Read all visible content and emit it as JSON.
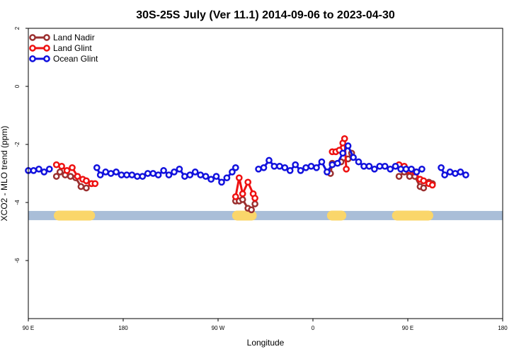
{
  "chart_data": {
    "type": "line",
    "title": "30S-25S July (Ver 11.1)   2014-09-06 to 2023-04-30",
    "xlabel": "Longitude",
    "ylabel": "XCO2 - MLO trend (ppm)",
    "xlim": [
      -90,
      180
    ],
    "ylim": [
      -8,
      2
    ],
    "x_ticks": [
      {
        "value": -90,
        "label": "90 E"
      },
      {
        "value": -36,
        "label": "180"
      },
      {
        "value": 18,
        "label": "90 W"
      },
      {
        "value": 72,
        "label": "0"
      },
      {
        "value": 126,
        "label": "90 E"
      },
      {
        "value": 180,
        "label": "180"
      }
    ],
    "y_ticks": [
      {
        "value": 2,
        "label": "2"
      },
      {
        "value": 0,
        "label": "0"
      },
      {
        "value": -2,
        "label": "-2"
      },
      {
        "value": -4,
        "label": "-4"
      },
      {
        "value": -6,
        "label": "-6"
      }
    ],
    "legend_position": "top-left",
    "grid": false,
    "band": {
      "y": -4.45,
      "color": "#a9bed8",
      "land_color": "#fad66a",
      "land_segments": [
        [
          -75.5,
          -52
        ],
        [
          26,
          40
        ],
        [
          80,
          91
        ],
        [
          117,
          140.5
        ]
      ]
    },
    "series": [
      {
        "name": "Land Nadir",
        "color": "#9b3030",
        "segments": [
          [
            [
              -74,
              -3.1
            ],
            [
              -72,
              -2.95
            ],
            [
              -69,
              -3.05
            ],
            [
              -66,
              -3.1
            ],
            [
              -63,
              -3.15
            ],
            [
              -60,
              -3.45
            ],
            [
              -57,
              -3.5
            ],
            [
              -54,
              -3.35
            ]
          ],
          [
            [
              28,
              -3.95
            ],
            [
              30,
              -3.95
            ],
            [
              32,
              -3.9
            ],
            [
              35,
              -4.2
            ],
            [
              37,
              -4.25
            ],
            [
              39,
              -4.05
            ]
          ],
          [
            [
              82,
              -3.0
            ],
            [
              83,
              -2.65
            ],
            [
              88,
              -2.6
            ],
            [
              92,
              -2.5
            ],
            [
              94,
              -2.3
            ]
          ],
          [
            [
              121,
              -3.1
            ],
            [
              124,
              -2.95
            ],
            [
              127,
              -3.1
            ],
            [
              130,
              -3.1
            ],
            [
              133,
              -3.45
            ],
            [
              135,
              -3.5
            ],
            [
              138,
              -3.3
            ],
            [
              140,
              -3.35
            ]
          ]
        ]
      },
      {
        "name": "Land Glint",
        "color": "#ee1111",
        "segments": [
          [
            [
              -74,
              -2.7
            ],
            [
              -71,
              -2.75
            ],
            [
              -68,
              -2.9
            ],
            [
              -65,
              -2.8
            ],
            [
              -62,
              -3.1
            ],
            [
              -59,
              -3.2
            ],
            [
              -57,
              -3.25
            ],
            [
              -54,
              -3.35
            ],
            [
              -52,
              -3.35
            ]
          ],
          [
            [
              28,
              -3.8
            ],
            [
              30,
              -3.15
            ],
            [
              32,
              -3.7
            ],
            [
              35,
              -3.3
            ],
            [
              38,
              -3.7
            ],
            [
              39,
              -3.85
            ]
          ],
          [
            [
              83,
              -2.25
            ],
            [
              85,
              -2.25
            ],
            [
              87,
              -2.2
            ],
            [
              89,
              -1.95
            ],
            [
              90,
              -1.8
            ],
            [
              91,
              -2.85
            ]
          ],
          [
            [
              121,
              -2.7
            ],
            [
              124,
              -2.75
            ],
            [
              127,
              -2.9
            ],
            [
              130,
              -2.95
            ],
            [
              133,
              -3.2
            ],
            [
              135,
              -3.25
            ],
            [
              138,
              -3.35
            ],
            [
              140,
              -3.4
            ]
          ]
        ]
      },
      {
        "name": "Ocean Glint",
        "color": "#1111dd",
        "segments": [
          [
            [
              -90,
              -2.9
            ],
            [
              -87,
              -2.9
            ],
            [
              -84,
              -2.85
            ],
            [
              -81,
              -2.95
            ],
            [
              -78,
              -2.85
            ]
          ],
          [
            [
              -51,
              -2.8
            ],
            [
              -49,
              -3.05
            ],
            [
              -46,
              -2.95
            ],
            [
              -43,
              -3.0
            ],
            [
              -40,
              -2.95
            ],
            [
              -37,
              -3.05
            ],
            [
              -34,
              -3.05
            ],
            [
              -31,
              -3.05
            ],
            [
              -28,
              -3.1
            ],
            [
              -25,
              -3.1
            ],
            [
              -22,
              -3.0
            ],
            [
              -19,
              -3.0
            ],
            [
              -16,
              -3.05
            ],
            [
              -13,
              -2.9
            ],
            [
              -10,
              -3.05
            ],
            [
              -7,
              -2.95
            ],
            [
              -4,
              -2.85
            ],
            [
              -1,
              -3.1
            ],
            [
              2,
              -3.05
            ],
            [
              5,
              -2.95
            ],
            [
              8,
              -3.05
            ],
            [
              11,
              -3.1
            ],
            [
              14,
              -3.2
            ],
            [
              17,
              -3.1
            ],
            [
              20,
              -3.3
            ],
            [
              23,
              -3.15
            ],
            [
              26,
              -2.95
            ],
            [
              28,
              -2.8
            ]
          ],
          [
            [
              41,
              -2.85
            ],
            [
              44,
              -2.8
            ],
            [
              47,
              -2.55
            ],
            [
              50,
              -2.75
            ],
            [
              53,
              -2.75
            ],
            [
              56,
              -2.8
            ],
            [
              59,
              -2.9
            ],
            [
              62,
              -2.7
            ],
            [
              65,
              -2.9
            ],
            [
              68,
              -2.8
            ],
            [
              71,
              -2.75
            ],
            [
              74,
              -2.8
            ],
            [
              77,
              -2.6
            ],
            [
              80,
              -2.95
            ],
            [
              83,
              -2.7
            ],
            [
              86,
              -2.65
            ],
            [
              89,
              -2.3
            ],
            [
              92,
              -2.05
            ],
            [
              95,
              -2.45
            ],
            [
              98,
              -2.6
            ],
            [
              101,
              -2.75
            ],
            [
              104,
              -2.75
            ],
            [
              107,
              -2.85
            ],
            [
              110,
              -2.75
            ],
            [
              113,
              -2.75
            ],
            [
              116,
              -2.85
            ],
            [
              119,
              -2.75
            ],
            [
              122,
              -2.85
            ],
            [
              125,
              -2.85
            ],
            [
              128,
              -2.85
            ],
            [
              131,
              -2.95
            ],
            [
              134,
              -2.85
            ]
          ],
          [
            [
              145,
              -2.8
            ],
            [
              147,
              -3.05
            ],
            [
              150,
              -2.95
            ],
            [
              153,
              -3.0
            ],
            [
              156,
              -2.95
            ],
            [
              159,
              -3.05
            ]
          ]
        ]
      }
    ]
  }
}
